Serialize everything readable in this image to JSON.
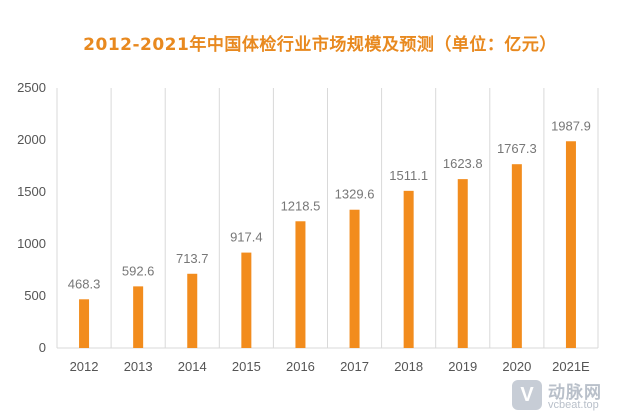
{
  "chart_data": {
    "type": "bar",
    "title": "2012-2021年中国体检行业市场规模及预测（单位：亿元）",
    "categories": [
      "2012",
      "2013",
      "2014",
      "2015",
      "2016",
      "2017",
      "2018",
      "2019",
      "2020",
      "2021E"
    ],
    "series": [
      {
        "values": [
          468.3,
          592.6,
          713.7,
          917.4,
          1218.5,
          1329.6,
          1511.1,
          1623.8,
          1767.3,
          1987.9
        ],
        "data_labels": [
          "468.3",
          "592.6",
          "713.7",
          "917.4",
          "1218.5",
          "1329.6",
          "1511.1",
          "1623.8",
          "1767.3",
          "1987.9"
        ],
        "color": "#f28c1d"
      }
    ],
    "ylim": [
      0,
      2500
    ],
    "yticks": [
      0,
      500,
      1000,
      1500,
      2000,
      2500
    ],
    "xlabel": "",
    "ylabel": "",
    "grid": "vertical-category-separators",
    "legend": "none",
    "colors": {
      "title": "#e8891f",
      "bar": "#f28c1d",
      "axis": "#d9d9d9"
    }
  },
  "watermark": {
    "icon_glyph": "V",
    "name": "动脉网",
    "url": "vcbeat.top"
  }
}
